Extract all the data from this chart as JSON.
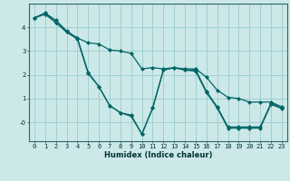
{
  "xlabel": "Humidex (Indice chaleur)",
  "bg_color": "#cce8e8",
  "grid_color": "#99cccc",
  "line_color": "#006666",
  "xlim": [
    -0.5,
    23.5
  ],
  "ylim": [
    -0.8,
    5.0
  ],
  "yticks": [
    0,
    1,
    2,
    3,
    4
  ],
  "ytick_labels": [
    "-0",
    "1",
    "2",
    "3",
    "4"
  ],
  "xticks": [
    0,
    1,
    2,
    3,
    4,
    5,
    6,
    7,
    8,
    9,
    10,
    11,
    12,
    13,
    14,
    15,
    16,
    17,
    18,
    19,
    20,
    21,
    22,
    23
  ],
  "series": [
    {
      "x": [
        0,
        1,
        2,
        3,
        4,
        5,
        6,
        7,
        8,
        9,
        10,
        11,
        12,
        13,
        14,
        15,
        16,
        17,
        18,
        19,
        20,
        21,
        22,
        23
      ],
      "y": [
        4.4,
        4.6,
        4.3,
        3.85,
        3.55,
        3.35,
        3.3,
        3.05,
        3.0,
        2.9,
        2.25,
        2.3,
        2.25,
        2.3,
        2.25,
        2.25,
        1.9,
        1.35,
        1.05,
        1.0,
        0.85,
        0.85,
        0.85,
        0.65
      ]
    },
    {
      "x": [
        0,
        1,
        2,
        3,
        4,
        5,
        6,
        7,
        8,
        9,
        10,
        11,
        12,
        13,
        14,
        15,
        16,
        17,
        18,
        19,
        20,
        21,
        22,
        23
      ],
      "y": [
        4.4,
        4.6,
        4.2,
        3.8,
        3.55,
        2.1,
        1.5,
        0.7,
        0.4,
        0.3,
        -0.5,
        0.6,
        2.2,
        2.3,
        2.2,
        2.2,
        1.3,
        0.65,
        -0.2,
        -0.2,
        -0.2,
        -0.2,
        0.8,
        0.6
      ]
    },
    {
      "x": [
        0,
        1,
        2,
        3,
        4,
        5,
        6,
        7,
        8,
        9,
        10,
        11,
        12,
        13,
        14,
        15,
        16,
        17,
        18,
        19,
        20,
        21,
        22,
        23
      ],
      "y": [
        4.4,
        4.55,
        4.2,
        3.8,
        3.5,
        2.05,
        1.5,
        0.7,
        0.4,
        0.25,
        -0.5,
        0.6,
        2.2,
        2.3,
        2.2,
        2.15,
        1.25,
        0.6,
        -0.25,
        -0.25,
        -0.25,
        -0.25,
        0.75,
        0.58
      ]
    }
  ]
}
